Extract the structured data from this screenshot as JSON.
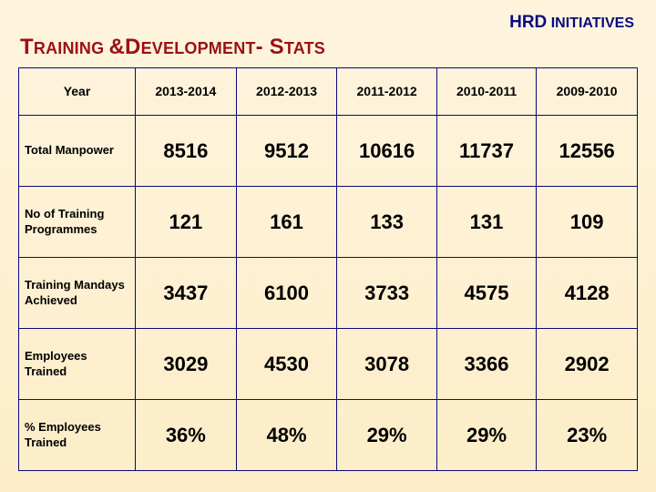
{
  "corner_header": {
    "big": "HRD",
    "small": " INITIATIVES"
  },
  "title_parts": [
    "T",
    "RAINING ",
    "&",
    "D",
    "EVELOPMENT",
    "- S",
    "TATS"
  ],
  "columns": [
    "Year",
    "2013-2014",
    "2012-2013",
    "2011-2012",
    "2010-2011",
    "2009-2010"
  ],
  "rows": [
    {
      "label": "Total Manpower",
      "values": [
        "8516",
        "9512",
        "10616",
        "11737",
        "12556"
      ]
    },
    {
      "label": "No of Training Programmes",
      "values": [
        "121",
        "161",
        "133",
        "131",
        "109"
      ]
    },
    {
      "label": "Training Mandays Achieved",
      "values": [
        "3437",
        "6100",
        "3733",
        "4575",
        "4128"
      ]
    },
    {
      "label": "Employees Trained",
      "values": [
        "3029",
        "4530",
        "3078",
        "3366",
        "2902"
      ]
    },
    {
      "label": "% Employees Trained",
      "values": [
        "36%",
        "48%",
        "29%",
        "29%",
        "23%"
      ]
    }
  ],
  "colors": {
    "brand_red": "#9a1016",
    "brand_navy": "#0a0a7a",
    "bg_top": "#fef4de",
    "bg_bottom": "#fdedc8"
  }
}
